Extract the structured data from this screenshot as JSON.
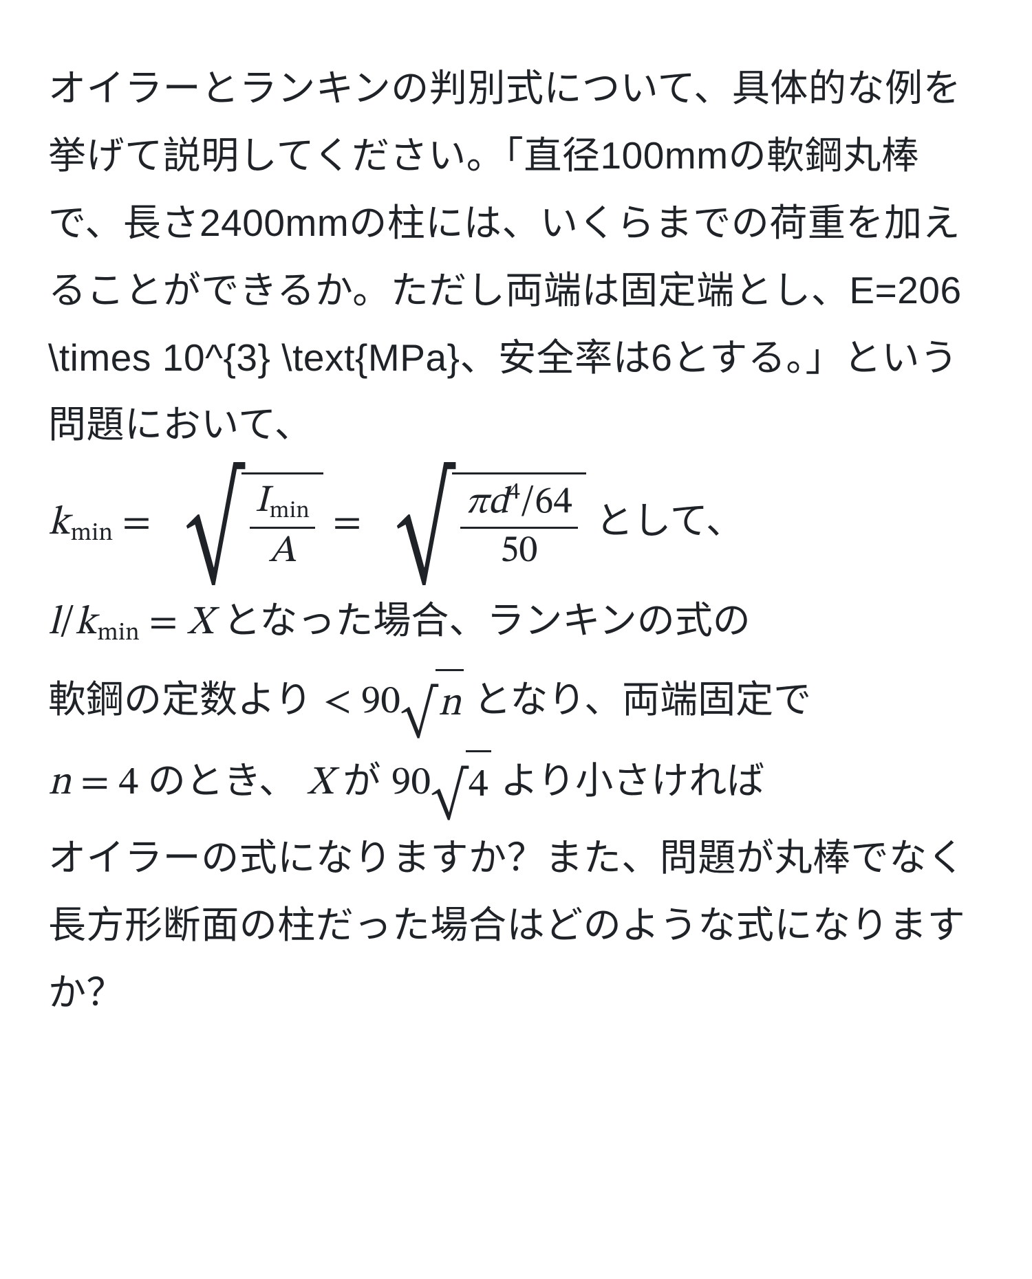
{
  "para1": "オイラーとランキンの判別式について、具体的な例を挙げて説明してください。「直径100mmの軟鋼丸棒で、長さ2400mmの柱には、いくらまでの荷重を加えることができるか。ただし両端は固定端とし、E=206 \\times 10^{3} \\text{MPa}、安全率は6とする。」という問題において、",
  "eq1": {
    "k": "k",
    "minLabel": "min",
    "eq": " = ",
    "I": "I",
    "A": "A",
    "pi": "π",
    "d": "d",
    "expo4": "4",
    "over64": "/64",
    "fifty": "50",
    "trailing_jp": " として、"
  },
  "eq2": {
    "l": "l",
    "slash": "/",
    "k": "k",
    "minLabel": "min",
    "eq": " = ",
    "X": "X",
    "jp1": " となった場合、ランキンの式の"
  },
  "eq3": {
    "jp_prefix": "軟鋼の定数より ",
    "lt": "< 90",
    "n": "n",
    "jp_mid": " となり、両端固定で"
  },
  "eq4": {
    "nEq": "n = 4",
    "jp1": " のとき、 ",
    "X": "X",
    "jp2": " が ",
    "ninety": "90",
    "four": "4",
    "jp3": " より小さければ"
  },
  "para2": "オイラーの式になりますか？また、問題が丸棒でなく長方形断面の柱だった場合はどのような式になりますか？"
}
